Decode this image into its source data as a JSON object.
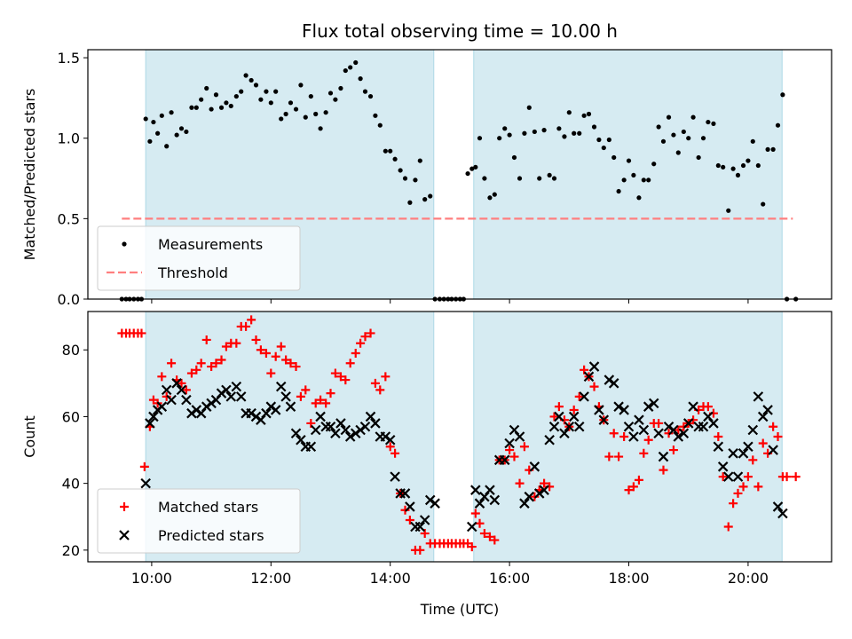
{
  "chart_data": {
    "title": "Flux total observing time = 10.00 h",
    "xlabel": "Time (UTC)",
    "x_unit": "hours UTC",
    "x_ticks": [
      {
        "value": 10,
        "label": "10:00"
      },
      {
        "value": 12,
        "label": "12:00"
      },
      {
        "value": 14,
        "label": "14:00"
      },
      {
        "value": 16,
        "label": "16:00"
      },
      {
        "value": 18,
        "label": "18:00"
      },
      {
        "value": 20,
        "label": "20:00"
      }
    ],
    "xlim": [
      8.93,
      21.4
    ],
    "shaded_regions": [
      [
        9.9,
        14.73
      ],
      [
        15.4,
        20.57
      ]
    ],
    "shade_color": "#add8e6",
    "panels": [
      {
        "type": "scatter",
        "ylabel": "Matched/Predicted stars",
        "ylim": [
          0,
          1.55
        ],
        "y_ticks": [
          {
            "value": 0,
            "label": "0.0"
          },
          {
            "value": 0.5,
            "label": "0.5"
          },
          {
            "value": 1.0,
            "label": "1.0"
          },
          {
            "value": 1.5,
            "label": "1.5"
          }
        ],
        "legend_position": "lower-left",
        "threshold": {
          "name": "Threshold",
          "value": 0.5,
          "x_range": [
            9.5,
            20.75
          ],
          "color": "#ff7f7f",
          "style": "dashed"
        },
        "series": [
          {
            "name": "Measurements",
            "marker": "dot",
            "color": "#000000",
            "x": [
              9.5,
              9.57,
              9.63,
              9.7,
              9.77,
              9.83,
              9.9,
              9.97,
              10.03,
              10.1,
              10.17,
              10.25,
              10.33,
              10.42,
              10.5,
              10.58,
              10.67,
              10.75,
              10.83,
              10.92,
              11.0,
              11.08,
              11.17,
              11.25,
              11.33,
              11.42,
              11.5,
              11.58,
              11.67,
              11.75,
              11.83,
              11.92,
              12.0,
              12.08,
              12.17,
              12.25,
              12.33,
              12.42,
              12.5,
              12.58,
              12.67,
              12.75,
              12.83,
              12.92,
              13.0,
              13.08,
              13.17,
              13.25,
              13.33,
              13.42,
              13.5,
              13.58,
              13.67,
              13.75,
              13.83,
              13.92,
              14.0,
              14.08,
              14.17,
              14.25,
              14.33,
              14.42,
              14.5,
              14.58,
              14.67,
              14.75,
              14.83,
              14.9,
              14.97,
              15.03,
              15.1,
              15.17,
              15.23,
              15.3,
              15.37,
              15.43,
              15.5,
              15.58,
              15.67,
              15.75,
              15.83,
              15.92,
              16.0,
              16.08,
              16.17,
              16.25,
              16.33,
              16.42,
              16.5,
              16.58,
              16.67,
              16.75,
              16.83,
              16.92,
              17.0,
              17.08,
              17.17,
              17.25,
              17.33,
              17.42,
              17.5,
              17.58,
              17.67,
              17.75,
              17.83,
              17.92,
              18.0,
              18.08,
              18.17,
              18.25,
              18.33,
              18.42,
              18.5,
              18.58,
              18.67,
              18.75,
              18.83,
              18.92,
              19.0,
              19.08,
              19.17,
              19.25,
              19.33,
              19.42,
              19.5,
              19.58,
              19.67,
              19.75,
              19.83,
              19.92,
              20.0,
              20.08,
              20.17,
              20.25,
              20.33,
              20.42,
              20.5,
              20.58,
              20.65,
              20.8
            ],
            "y": [
              0,
              0,
              0,
              0,
              0,
              0,
              1.12,
              0.98,
              1.1,
              1.03,
              1.14,
              0.95,
              1.16,
              1.02,
              1.06,
              1.04,
              1.19,
              1.19,
              1.24,
              1.31,
              1.18,
              1.27,
              1.19,
              1.22,
              1.2,
              1.26,
              1.29,
              1.39,
              1.36,
              1.33,
              1.24,
              1.29,
              1.22,
              1.29,
              1.12,
              1.15,
              1.22,
              1.18,
              1.33,
              1.13,
              1.26,
              1.15,
              1.06,
              1.16,
              1.28,
              1.24,
              1.31,
              1.42,
              1.44,
              1.47,
              1.37,
              1.29,
              1.26,
              1.14,
              1.08,
              0.92,
              0.92,
              0.87,
              0.8,
              0.75,
              0.6,
              0.74,
              0.86,
              0.62,
              0.64,
              0,
              0,
              0,
              0,
              0,
              0,
              0,
              0,
              0.78,
              0.81,
              0.82,
              1.0,
              0.75,
              0.63,
              0.65,
              1.0,
              1.06,
              1.02,
              0.88,
              0.75,
              1.03,
              1.19,
              1.04,
              0.75,
              1.05,
              0.77,
              0.75,
              1.06,
              1.01,
              1.16,
              1.03,
              1.03,
              1.14,
              1.15,
              1.07,
              0.99,
              0.94,
              0.99,
              0.88,
              0.67,
              0.74,
              0.86,
              0.77,
              0.63,
              0.74,
              0.74,
              0.84,
              1.07,
              0.98,
              1.13,
              1.02,
              0.91,
              1.04,
              1.0,
              1.13,
              0.88,
              1.0,
              1.1,
              1.09,
              0.83,
              0.82,
              0.55,
              0.81,
              0.77,
              0.83,
              0.86,
              0.98,
              0.83,
              0.59,
              0.93,
              0.93,
              1.08,
              1.27,
              0,
              0
            ]
          }
        ]
      },
      {
        "type": "scatter",
        "ylabel": "Count",
        "ylim": [
          16.5,
          91.5
        ],
        "y_ticks": [
          {
            "value": 20,
            "label": "20"
          },
          {
            "value": 40,
            "label": "40"
          },
          {
            "value": 60,
            "label": "60"
          },
          {
            "value": 80,
            "label": "80"
          }
        ],
        "legend_position": "lower-left",
        "series": [
          {
            "name": "Matched stars",
            "marker": "plus",
            "color": "#ff0000",
            "x": [
              9.5,
              9.57,
              9.63,
              9.7,
              9.77,
              9.83,
              9.88,
              9.97,
              10.03,
              10.1,
              10.17,
              10.25,
              10.33,
              10.42,
              10.5,
              10.58,
              10.67,
              10.75,
              10.83,
              10.92,
              11.0,
              11.08,
              11.17,
              11.25,
              11.33,
              11.42,
              11.5,
              11.58,
              11.67,
              11.75,
              11.83,
              11.92,
              12.0,
              12.08,
              12.17,
              12.25,
              12.33,
              12.42,
              12.5,
              12.58,
              12.67,
              12.75,
              12.83,
              12.92,
              13.0,
              13.08,
              13.17,
              13.25,
              13.33,
              13.42,
              13.5,
              13.58,
              13.67,
              13.75,
              13.83,
              13.92,
              14.0,
              14.08,
              14.17,
              14.25,
              14.33,
              14.42,
              14.5,
              14.58,
              14.67,
              14.75,
              14.83,
              14.9,
              14.97,
              15.03,
              15.1,
              15.17,
              15.23,
              15.3,
              15.37,
              15.43,
              15.5,
              15.58,
              15.67,
              15.75,
              15.83,
              15.92,
              16.0,
              16.08,
              16.17,
              16.25,
              16.33,
              16.42,
              16.5,
              16.58,
              16.67,
              16.75,
              16.83,
              16.92,
              17.0,
              17.08,
              17.17,
              17.25,
              17.33,
              17.42,
              17.5,
              17.58,
              17.67,
              17.75,
              17.83,
              17.92,
              18.0,
              18.08,
              18.17,
              18.25,
              18.33,
              18.42,
              18.5,
              18.58,
              18.67,
              18.75,
              18.83,
              18.92,
              19.0,
              19.08,
              19.17,
              19.25,
              19.33,
              19.42,
              19.5,
              19.58,
              19.67,
              19.75,
              19.83,
              19.92,
              20.0,
              20.08,
              20.17,
              20.25,
              20.33,
              20.42,
              20.5,
              20.58,
              20.65,
              20.8
            ],
            "y": [
              85,
              85,
              85,
              85,
              85,
              85,
              45,
              57,
              65,
              64,
              72,
              66,
              76,
              71,
              70,
              68,
              73,
              74,
              76,
              83,
              75,
              76,
              77,
              81,
              82,
              82,
              87,
              87,
              89,
              83,
              80,
              79,
              73,
              78,
              81,
              77,
              76,
              75,
              66,
              68,
              58,
              64,
              65,
              64,
              67,
              73,
              72,
              71,
              76,
              79,
              82,
              84,
              85,
              70,
              68,
              72,
              51,
              49,
              37,
              32,
              29,
              20,
              20,
              25,
              22,
              22,
              22,
              22,
              22,
              22,
              22,
              22,
              22,
              22,
              21,
              31,
              28,
              25,
              24,
              23,
              47,
              47,
              50,
              48,
              40,
              51,
              44,
              36,
              38,
              40,
              39,
              60,
              63,
              59,
              57,
              62,
              66,
              74,
              72,
              69,
              63,
              59,
              48,
              55,
              48,
              54,
              38,
              39,
              41,
              49,
              53,
              58,
              58,
              44,
              55,
              50,
              56,
              57,
              58,
              59,
              62,
              63,
              63,
              61,
              54,
              42,
              27,
              34,
              37,
              39,
              42,
              47,
              39,
              52,
              49,
              57,
              54,
              42,
              42,
              42
            ]
          },
          {
            "name": "Predicted stars",
            "marker": "cross",
            "color": "#000000",
            "x": [
              9.9,
              9.97,
              10.03,
              10.1,
              10.17,
              10.25,
              10.33,
              10.42,
              10.5,
              10.58,
              10.67,
              10.75,
              10.83,
              10.92,
              11.0,
              11.08,
              11.17,
              11.25,
              11.33,
              11.42,
              11.5,
              11.58,
              11.67,
              11.75,
              11.83,
              11.92,
              12.0,
              12.08,
              12.17,
              12.25,
              12.33,
              12.42,
              12.5,
              12.58,
              12.67,
              12.75,
              12.83,
              12.92,
              13.0,
              13.08,
              13.17,
              13.25,
              13.33,
              13.42,
              13.5,
              13.58,
              13.67,
              13.75,
              13.83,
              13.92,
              14.0,
              14.08,
              14.17,
              14.25,
              14.33,
              14.42,
              14.5,
              14.58,
              14.67,
              14.75,
              15.37,
              15.43,
              15.5,
              15.58,
              15.67,
              15.75,
              15.83,
              15.92,
              16.0,
              16.08,
              16.17,
              16.25,
              16.33,
              16.42,
              16.5,
              16.58,
              16.67,
              16.75,
              16.83,
              16.92,
              17.0,
              17.08,
              17.17,
              17.25,
              17.33,
              17.42,
              17.5,
              17.58,
              17.67,
              17.75,
              17.83,
              17.92,
              18.0,
              18.08,
              18.17,
              18.25,
              18.33,
              18.42,
              18.5,
              18.58,
              18.67,
              18.75,
              18.83,
              18.92,
              19.0,
              19.08,
              19.17,
              19.25,
              19.33,
              19.42,
              19.5,
              19.58,
              19.67,
              19.75,
              19.83,
              19.92,
              20.0,
              20.08,
              20.17,
              20.25,
              20.33,
              20.42,
              20.5,
              20.58
            ],
            "y": [
              40,
              58,
              60,
              62,
              63,
              68,
              65,
              70,
              68,
              65,
              61,
              62,
              61,
              63,
              64,
              65,
              67,
              68,
              66,
              69,
              66,
              61,
              61,
              60,
              59,
              61,
              63,
              62,
              69,
              66,
              63,
              55,
              53,
              51,
              51,
              56,
              60,
              57,
              57,
              55,
              58,
              56,
              54,
              55,
              56,
              57,
              60,
              58,
              54,
              54,
              53,
              42,
              37,
              37,
              33,
              27,
              27,
              29,
              35,
              34,
              27,
              38,
              34,
              36,
              38,
              35,
              47,
              47,
              52,
              56,
              54,
              34,
              36,
              45,
              37,
              38,
              53,
              57,
              60,
              55,
              57,
              60,
              57,
              66,
              72,
              75,
              62,
              59,
              71,
              70,
              63,
              62,
              57,
              54,
              59,
              56,
              63,
              64,
              55,
              48,
              57,
              56,
              54,
              55,
              58,
              63,
              57,
              57,
              60,
              58,
              51,
              45,
              42,
              49,
              42,
              49,
              51,
              56,
              66,
              60,
              62,
              50,
              33,
              31
            ]
          }
        ]
      }
    ]
  }
}
